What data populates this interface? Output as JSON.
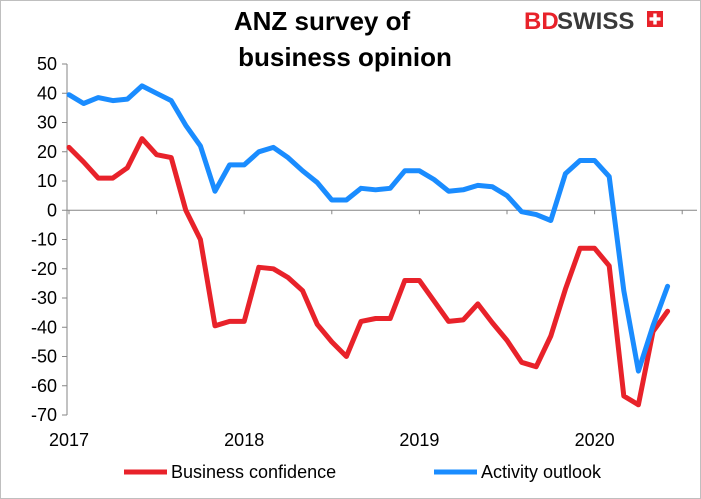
{
  "chart_data": {
    "type": "line",
    "title": [
      "ANZ survey of",
      "business opinion"
    ],
    "xlabel": "",
    "ylabel": "",
    "ylim": [
      -70,
      50
    ],
    "yticks": [
      50,
      40,
      30,
      20,
      10,
      0,
      -10,
      -20,
      -30,
      -40,
      -50,
      -60,
      -70
    ],
    "xlim": [
      "2017-01",
      "2020-07"
    ],
    "xticks": [
      "2017",
      "2018",
      "2019",
      "2020"
    ],
    "x": [
      "2017-01",
      "2017-02",
      "2017-03",
      "2017-04",
      "2017-05",
      "2017-06",
      "2017-07",
      "2017-08",
      "2017-09",
      "2017-10",
      "2017-11",
      "2017-12",
      "2018-01",
      "2018-02",
      "2018-03",
      "2018-04",
      "2018-05",
      "2018-06",
      "2018-07",
      "2018-08",
      "2018-09",
      "2018-10",
      "2018-11",
      "2018-12",
      "2019-01",
      "2019-02",
      "2019-03",
      "2019-04",
      "2019-05",
      "2019-06",
      "2019-07",
      "2019-08",
      "2019-09",
      "2019-10",
      "2019-11",
      "2019-12",
      "2020-01",
      "2020-02",
      "2020-03",
      "2020-04",
      "2020-05",
      "2020-06"
    ],
    "series": [
      {
        "name": "Business confidence",
        "color": "#e8222a",
        "values": [
          21.5,
          16.5,
          11,
          11,
          14.5,
          24.5,
          19,
          18,
          0,
          -10,
          -39.5,
          -38,
          -38,
          -19.5,
          -20,
          -23,
          -27.5,
          -39,
          -45,
          -50,
          -38,
          -37,
          -37,
          -24,
          -24,
          -31,
          -38,
          -37.5,
          -32,
          -38.5,
          -44.5,
          -52,
          -53.5,
          -43,
          -27,
          -13,
          -13,
          -19,
          -63.5,
          -66.5,
          -41.5,
          -34.5
        ]
      },
      {
        "name": "Activity outlook",
        "color": "#1a8cff",
        "values": [
          39.5,
          36.5,
          38.5,
          37.5,
          38,
          42.5,
          40,
          37.5,
          29,
          22,
          6.5,
          15.5,
          15.5,
          20,
          21.5,
          18,
          13.5,
          9.5,
          3.5,
          3.5,
          7.5,
          7,
          7.5,
          13.5,
          13.5,
          10.5,
          6.5,
          7,
          8.5,
          8,
          5,
          -0.5,
          -1.5,
          -3.5,
          12.5,
          17,
          17,
          11.5,
          -27.5,
          -55,
          -39.5,
          -26
        ]
      }
    ],
    "grid": false,
    "legend": "bottom"
  },
  "logo": {
    "bd": "BD",
    "swiss": "SWISS",
    "colors": {
      "red": "#e8222a",
      "dark": "#3a3a3a"
    }
  }
}
